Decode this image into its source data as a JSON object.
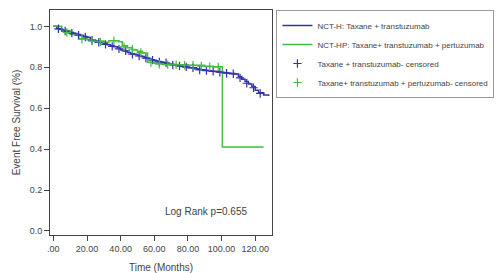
{
  "chart_data": {
    "type": "line",
    "xlabel": "Time (Months)",
    "ylabel": "Event Free Survival (%)",
    "xlim": [
      -2,
      130
    ],
    "ylim": [
      -0.02,
      1.08
    ],
    "xticks": [
      {
        "value": 0,
        "label": ".00"
      },
      {
        "value": 20,
        "label": "20.00"
      },
      {
        "value": 40,
        "label": "40.00"
      },
      {
        "value": 60,
        "label": "60.00"
      },
      {
        "value": 80,
        "label": "80.00"
      },
      {
        "value": 100,
        "label": "100.00"
      },
      {
        "value": 120,
        "label": "120.00"
      }
    ],
    "yticks": [
      {
        "value": 0.0,
        "label": "0.0"
      },
      0.2,
      0.4,
      0.6,
      0.8,
      {
        "value": 1.0,
        "label": "1.0"
      }
    ],
    "grid": false,
    "legend": "right",
    "annotations": [
      {
        "text": "Log Rank p=0.655",
        "x": 65,
        "y": 0.06
      }
    ],
    "series": [
      {
        "name": "NCT-H: Taxane + transtuzumab",
        "type": "line",
        "line_style": "step",
        "color": "#3333aa",
        "x": [
          0,
          2,
          4,
          6,
          8,
          10,
          12,
          14,
          16,
          18,
          20,
          22,
          24,
          26,
          28,
          30,
          32,
          34,
          36,
          38,
          40,
          42,
          44,
          46,
          48,
          50,
          52,
          54,
          56,
          58,
          60,
          62,
          64,
          66,
          68,
          70,
          72,
          74,
          76,
          78,
          80,
          82,
          84,
          86,
          88,
          90,
          92,
          94,
          96,
          98,
          100,
          102,
          104,
          106,
          108,
          110,
          112,
          114,
          116,
          118,
          120,
          122,
          125,
          128
        ],
        "values": [
          1.0,
          0.99,
          0.985,
          0.98,
          0.975,
          0.97,
          0.965,
          0.96,
          0.955,
          0.95,
          0.945,
          0.935,
          0.93,
          0.925,
          0.92,
          0.915,
          0.91,
          0.905,
          0.9,
          0.895,
          0.885,
          0.878,
          0.872,
          0.866,
          0.862,
          0.858,
          0.853,
          0.848,
          0.843,
          0.837,
          0.832,
          0.828,
          0.824,
          0.82,
          0.816,
          0.813,
          0.81,
          0.807,
          0.804,
          0.801,
          0.798,
          0.796,
          0.793,
          0.79,
          0.788,
          0.785,
          0.783,
          0.781,
          0.779,
          0.777,
          0.775,
          0.773,
          0.771,
          0.769,
          0.767,
          0.755,
          0.742,
          0.73,
          0.718,
          0.706,
          0.688,
          0.675,
          0.665,
          0.66
        ]
      },
      {
        "name": "NCT-HP: Taxane+ transtuzumab + pertuzumab",
        "type": "line",
        "line_style": "step",
        "color": "#44bb44",
        "x": [
          0,
          5,
          10,
          15,
          20,
          25,
          30,
          33,
          36,
          39,
          41,
          44,
          47,
          50,
          53,
          56,
          60,
          65,
          70,
          75,
          80,
          85,
          90,
          95,
          100,
          100.5,
          105,
          110,
          115,
          120,
          125
        ],
        "values": [
          1.0,
          0.98,
          0.96,
          0.94,
          0.935,
          0.928,
          0.922,
          0.93,
          0.93,
          0.925,
          0.905,
          0.895,
          0.885,
          0.878,
          0.87,
          0.825,
          0.82,
          0.815,
          0.813,
          0.812,
          0.81,
          0.81,
          0.805,
          0.803,
          0.802,
          0.41,
          0.41,
          0.41,
          0.41,
          0.41,
          0.41
        ]
      },
      {
        "name": "Taxane + transtuzumab- censored",
        "type": "scatter",
        "marker": "plus",
        "color": "#3333aa",
        "x": [
          3,
          7,
          11,
          15,
          19,
          23,
          27,
          31,
          35,
          39,
          43,
          47,
          51,
          55,
          59,
          63,
          67,
          71,
          75,
          79,
          83,
          87,
          91,
          95,
          99,
          103,
          107,
          111,
          115,
          119,
          123
        ],
        "values": [
          0.988,
          0.977,
          0.967,
          0.957,
          0.948,
          0.932,
          0.922,
          0.912,
          0.902,
          0.89,
          0.88,
          0.864,
          0.855,
          0.845,
          0.835,
          0.826,
          0.822,
          0.811,
          0.807,
          0.802,
          0.798,
          0.787,
          0.784,
          0.78,
          0.776,
          0.771,
          0.768,
          0.748,
          0.722,
          0.7,
          0.672
        ]
      },
      {
        "name": "Taxane+ transtuzumab + pertuzumab- censored",
        "type": "scatter",
        "marker": "plus",
        "color": "#44bb44",
        "x": [
          8,
          17,
          23,
          28,
          36,
          42,
          47,
          52,
          58,
          63,
          68,
          73,
          78,
          83,
          88,
          93,
          98
        ],
        "values": [
          0.97,
          0.937,
          0.928,
          0.924,
          0.93,
          0.9,
          0.888,
          0.872,
          0.822,
          0.815,
          0.813,
          0.812,
          0.81,
          0.81,
          0.806,
          0.803,
          0.802
        ]
      }
    ]
  }
}
